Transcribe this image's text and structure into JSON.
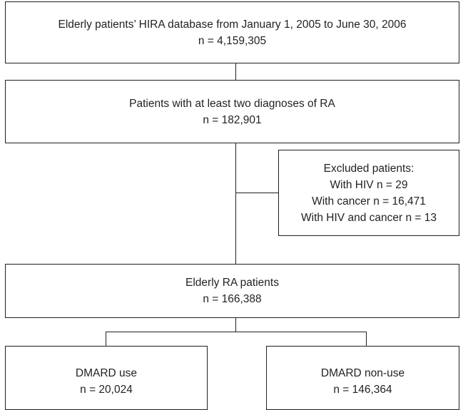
{
  "nodes": [
    {
      "lines": [
        "Elderly patients’ HIRA database from January 1, 2005 to June 30, 2006",
        "n = 4,159,305"
      ]
    },
    {
      "lines": [
        "Patients with at least two diagnoses of RA",
        "n = 182,901"
      ]
    },
    {
      "lines": [
        "Excluded patients:",
        "With HIV n = 29",
        "With cancer n = 16,471",
        "With HIV and cancer n = 13"
      ]
    },
    {
      "lines": [
        "Elderly RA patients",
        "n = 166,388"
      ]
    },
    {
      "lines": [
        "DMARD use",
        "n = 20,024"
      ]
    },
    {
      "lines": [
        "DMARD non-use",
        "n = 146,364"
      ]
    }
  ]
}
